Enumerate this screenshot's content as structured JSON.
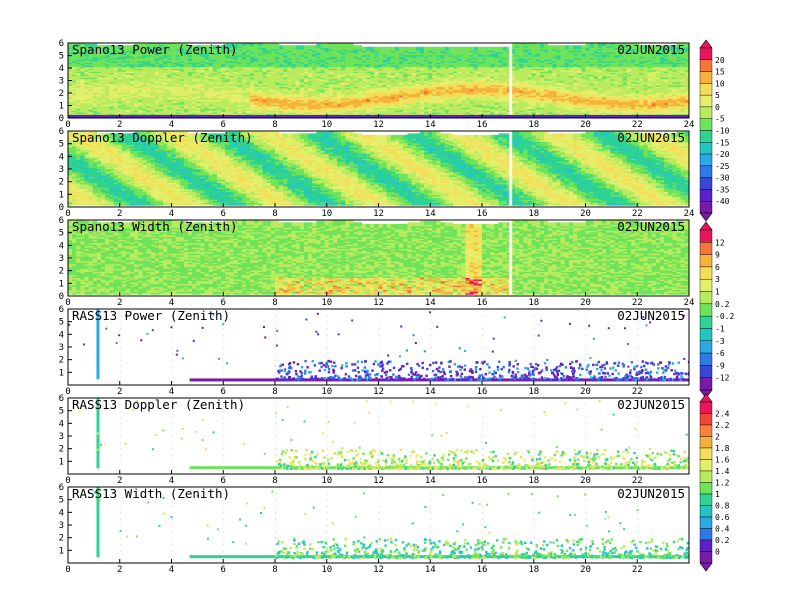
{
  "chart_data": [
    {
      "type": "heatmap",
      "title": "Spano13 Power (Zenith)",
      "date": "02JUN2015",
      "xlim": [
        0,
        24
      ],
      "ylim": [
        0,
        6
      ],
      "x_ticks": [
        "0",
        "2",
        "4",
        "6",
        "8",
        "10",
        "12",
        "14",
        "16",
        "18",
        "20",
        "22",
        "24"
      ],
      "y_ticks": [
        "0",
        "1",
        "2",
        "3",
        "4",
        "5",
        "6"
      ],
      "colorbar_group": 0
    },
    {
      "type": "heatmap",
      "title": "Spano13 Doppler (Zenith)",
      "date": "02JUN2015",
      "xlim": [
        0,
        24
      ],
      "ylim": [
        0,
        6
      ],
      "x_ticks": [
        "0",
        "2",
        "4",
        "6",
        "8",
        "10",
        "12",
        "14",
        "16",
        "18",
        "20",
        "22",
        "24"
      ],
      "y_ticks": [
        "0",
        "1",
        "2",
        "3",
        "4",
        "5",
        "6"
      ],
      "colorbar_group": 0
    },
    {
      "type": "heatmap",
      "title": "Spano13 Width (Zenith)",
      "date": "02JUN2015",
      "xlim": [
        0,
        24
      ],
      "ylim": [
        0,
        6
      ],
      "x_ticks": [
        "0",
        "2",
        "4",
        "6",
        "8",
        "10",
        "12",
        "14",
        "16",
        "18",
        "20",
        "22",
        "24"
      ],
      "y_ticks": [
        "0",
        "1",
        "2",
        "3",
        "4",
        "5",
        "6"
      ],
      "colorbar_group": 1
    },
    {
      "type": "scatter",
      "title": "RASS13 Power (Zenith)",
      "date": "02JUN2015",
      "xlim": [
        0,
        24
      ],
      "ylim": [
        0,
        6
      ],
      "x_ticks": [
        "0",
        "2",
        "4",
        "6",
        "8",
        "10",
        "12",
        "14",
        "16",
        "18",
        "20",
        "22"
      ],
      "y_ticks": [
        "1",
        "2",
        "3",
        "4",
        "5",
        "6"
      ],
      "colorbar_group": 1
    },
    {
      "type": "scatter",
      "title": "RASS13 Doppler (Zenith)",
      "date": "02JUN2015",
      "xlim": [
        0,
        24
      ],
      "ylim": [
        0,
        6
      ],
      "x_ticks": [
        "0",
        "2",
        "4",
        "6",
        "8",
        "10",
        "12",
        "14",
        "16",
        "18",
        "20",
        "22"
      ],
      "y_ticks": [
        "1",
        "2",
        "3",
        "4",
        "5",
        "6"
      ],
      "colorbar_group": 2
    },
    {
      "type": "scatter",
      "title": "RASS13 Width (Zenith)",
      "date": "02JUN2015",
      "xlim": [
        0,
        24
      ],
      "ylim": [
        0,
        6
      ],
      "x_ticks": [
        "0",
        "2",
        "4",
        "6",
        "8",
        "10",
        "12",
        "14",
        "16",
        "18",
        "20",
        "22"
      ],
      "y_ticks": [
        "1",
        "2",
        "3",
        "4",
        "5",
        "6"
      ],
      "colorbar_group": 2
    }
  ],
  "colorbars": [
    {
      "labels": [
        "20",
        "15",
        "10",
        "5",
        "0",
        "-5",
        "-10",
        "-15",
        "-20",
        "-25",
        "-30",
        "-35",
        "-40"
      ],
      "colors": [
        "#e8175d",
        "#f4753a",
        "#f7b13b",
        "#f4de58",
        "#e3ef6b",
        "#b8ec5e",
        "#6fe35a",
        "#2fd38f",
        "#24c6c4",
        "#2aa9e6",
        "#2f78e8",
        "#3a46d8",
        "#5a22c8",
        "#7a1aa8"
      ]
    },
    {
      "labels": [
        "12",
        "9",
        "6",
        "3",
        "1",
        "0.2",
        "-0.2",
        "-1",
        "-3",
        "-6",
        "-9",
        "-12"
      ],
      "colors": [
        "#e8175d",
        "#f4753a",
        "#f7b13b",
        "#f4de58",
        "#e3ef6b",
        "#b8ec5e",
        "#6fe35a",
        "#2fd38f",
        "#24c6c4",
        "#2aa9e6",
        "#2f78e8",
        "#3a46d8",
        "#7a1aa8"
      ]
    },
    {
      "labels": [
        "2.4",
        "2.2",
        "2",
        "1.8",
        "1.6",
        "1.4",
        "1.2",
        "1",
        "0.8",
        "0.6",
        "0.4",
        "0.2",
        "0"
      ],
      "colors": [
        "#e8175d",
        "#f4453a",
        "#f7833b",
        "#f7b13b",
        "#f4de58",
        "#e3ef6b",
        "#b8ec5e",
        "#6fe35a",
        "#2fd38f",
        "#24c6c4",
        "#2aa9e6",
        "#2f78e8",
        "#5a22c8",
        "#7a1aa8"
      ]
    }
  ]
}
